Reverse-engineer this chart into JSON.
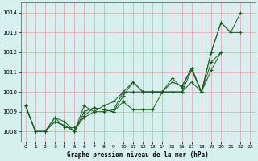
{
  "xlabel": "Graphe pression niveau de la mer (hPa)",
  "ylabel": "",
  "bg_color": "#d6f0f0",
  "grid_color": "#e8aaaa",
  "line_color": "#1a5c1a",
  "marker": "+",
  "ylim": [
    1007.5,
    1014.5
  ],
  "xlim": [
    -0.5,
    23.5
  ],
  "yticks": [
    1008,
    1009,
    1010,
    1011,
    1012,
    1013,
    1014
  ],
  "xticks": [
    0,
    1,
    2,
    3,
    4,
    5,
    6,
    7,
    8,
    9,
    10,
    11,
    12,
    13,
    14,
    15,
    16,
    17,
    18,
    19,
    20,
    21,
    22,
    23
  ],
  "series": [
    [
      1009.3,
      1008.0,
      1008.0,
      1008.5,
      1008.3,
      1008.0,
      1009.0,
      1009.2,
      1009.1,
      1009.0,
      1009.8,
      1010.5,
      1010.0,
      1010.0,
      1010.0,
      1010.5,
      1010.3,
      1011.2,
      1010.0,
      1012.0,
      1013.5,
      1013.0,
      1014.0,
      null
    ],
    [
      1009.3,
      1008.0,
      1008.0,
      1008.5,
      1008.3,
      1008.0,
      1009.3,
      1009.0,
      1009.0,
      1009.1,
      1010.0,
      1010.5,
      1010.0,
      1010.0,
      1010.0,
      1010.7,
      1010.2,
      1011.2,
      1010.0,
      1012.0,
      1013.5,
      1013.0,
      1013.0,
      null
    ],
    [
      1009.3,
      1008.0,
      1008.0,
      1008.7,
      1008.5,
      1008.0,
      1008.8,
      1009.2,
      1009.1,
      1009.0,
      1009.5,
      1009.1,
      1009.1,
      1009.1,
      1010.0,
      1010.0,
      1010.0,
      1011.1,
      1010.0,
      1011.1,
      1012.0,
      null,
      null,
      null
    ],
    [
      1009.3,
      1008.0,
      1008.0,
      1008.7,
      1008.2,
      1008.2,
      1008.7,
      1009.0,
      1009.3,
      1009.5,
      1010.0,
      1010.0,
      1010.0,
      1010.0,
      1010.0,
      1010.0,
      1010.0,
      1010.5,
      1010.0,
      1011.5,
      1012.0,
      null,
      null,
      null
    ]
  ]
}
